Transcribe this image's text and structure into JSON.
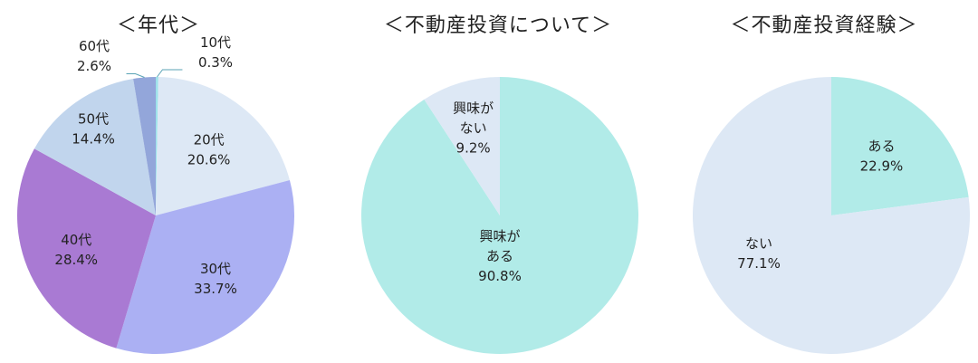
{
  "chart_data": [
    {
      "type": "pie",
      "title": "＜年代＞",
      "start_angle_deg": 0,
      "direction": "clockwise",
      "slices": [
        {
          "label": "10代",
          "value": 0.3,
          "value_text": "0.3%",
          "color": "#9ee2ea"
        },
        {
          "label": "20代",
          "value": 20.6,
          "value_text": "20.6%",
          "color": "#dde8f5"
        },
        {
          "label": "30代",
          "value": 33.7,
          "value_text": "33.7%",
          "color": "#abb0f3"
        },
        {
          "label": "40代",
          "value": 28.4,
          "value_text": "28.4%",
          "color": "#a97ad3"
        },
        {
          "label": "50代",
          "value": 14.4,
          "value_text": "14.4%",
          "color": "#c1d5ed"
        },
        {
          "label": "60代",
          "value": 2.6,
          "value_text": "2.6%",
          "color": "#93a6da"
        }
      ]
    },
    {
      "type": "pie",
      "title": "＜不動産投資について＞",
      "start_angle_deg": 0,
      "direction": "clockwise",
      "slices": [
        {
          "label": "興味がある",
          "value": 90.8,
          "value_text": "90.8%",
          "color": "#b1ebe8"
        },
        {
          "label": "興味がない",
          "value": 9.2,
          "value_text": "9.2%",
          "color": "#dde8f5"
        }
      ]
    },
    {
      "type": "pie",
      "title": "＜不動産投資経験＞",
      "start_angle_deg": 0,
      "direction": "clockwise",
      "slices": [
        {
          "label": "ある",
          "value": 22.9,
          "value_text": "22.9%",
          "color": "#b1ebe8"
        },
        {
          "label": "ない",
          "value": 77.1,
          "value_text": "77.1%",
          "color": "#dde8f5"
        }
      ]
    }
  ]
}
